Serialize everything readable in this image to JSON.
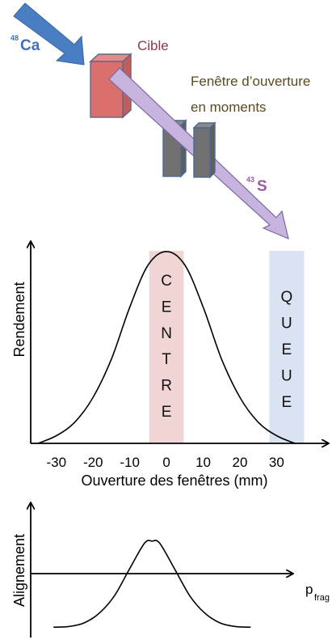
{
  "top_diagram": {
    "beam_label": "Ca",
    "beam_mass": "48",
    "target_label": "Cible",
    "window_label_line1": "Fenêtre d’ouverture",
    "window_label_line2": "en moments",
    "fragment_label": "S",
    "fragment_mass": "43",
    "colors": {
      "beam": "#4a7ec2",
      "target": "#d9706d",
      "target_label": "#8c3a4a",
      "window": "#6e6e6e",
      "fragment": "#c6b4de",
      "fragment_label": "#9a5aa6",
      "window_label": "#5b4a20"
    }
  },
  "chart_data": [
    {
      "type": "line",
      "title": "",
      "xlabel": "Ouverture des fenêtres (mm)",
      "ylabel": "Rendement",
      "xlim": [
        -37,
        44
      ],
      "ylim": [
        0,
        1.05
      ],
      "xticks": [
        -30,
        -20,
        -10,
        0,
        10,
        20,
        30
      ],
      "series": [
        {
          "x": [
            -35,
            -30,
            -25,
            -20,
            -15,
            -10,
            -5,
            0,
            5,
            10,
            15,
            20,
            25,
            30,
            35
          ],
          "y": [
            0.0,
            0.04,
            0.11,
            0.24,
            0.44,
            0.71,
            0.93,
            1.0,
            0.93,
            0.71,
            0.44,
            0.24,
            0.11,
            0.04,
            0.0
          ]
        }
      ],
      "regions": [
        {
          "label": "CENTRE",
          "letters": [
            "C",
            "E",
            "N",
            "T",
            "R",
            "E"
          ],
          "from": -4.7,
          "to": 4.7,
          "color": "#f1d5d5"
        },
        {
          "label": "QUEUE",
          "letters": [
            "Q",
            "U",
            "E",
            "U",
            "E"
          ],
          "from": 28,
          "to": 37.5,
          "color": "#dae3f1"
        }
      ],
      "grid": false
    },
    {
      "type": "line",
      "title": "",
      "xlabel": "p",
      "xlabel_sub": "frag",
      "ylabel": "Alignement",
      "xlim": [
        -3.2,
        3.7
      ],
      "ylim": [
        -0.65,
        1.3
      ],
      "series": [
        {
          "x": [
            -2.6,
            -2.2,
            -1.8,
            -1.4,
            -1.0,
            -0.6,
            -0.2,
            0,
            0.2,
            0.6,
            1.0,
            1.4,
            1.8,
            2.2,
            2.6
          ],
          "y": [
            -0.5,
            -0.49,
            -0.44,
            -0.3,
            -0.05,
            0.34,
            0.72,
            0.75,
            0.72,
            0.34,
            -0.05,
            -0.3,
            -0.44,
            -0.49,
            -0.5
          ]
        }
      ],
      "grid": false
    }
  ]
}
